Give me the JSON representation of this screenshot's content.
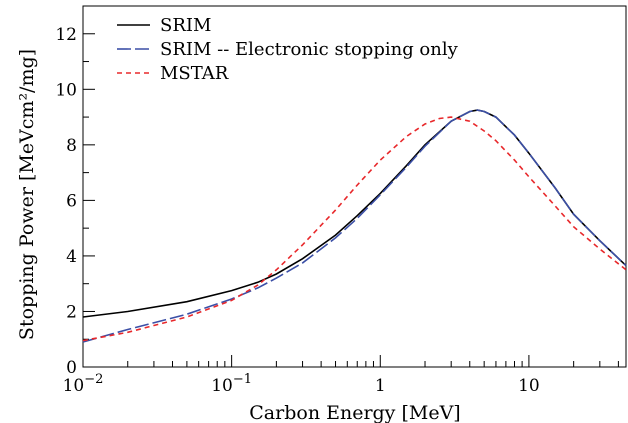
{
  "chart_data": {
    "type": "line",
    "xlabel": "Carbon Energy [MeV]",
    "ylabel": "Stopping Power [MeVcm²/mg]",
    "xscale": "log",
    "xlim": [
      0.01,
      45
    ],
    "ylim": [
      0,
      13
    ],
    "x_ticks": [
      {
        "value": 0.01,
        "base": "10",
        "exp": "−2"
      },
      {
        "value": 0.1,
        "base": "10",
        "exp": "−1"
      },
      {
        "value": 1,
        "base": "1",
        "exp": ""
      },
      {
        "value": 10,
        "base": "10",
        "exp": ""
      }
    ],
    "y_ticks": [
      0,
      2,
      4,
      6,
      8,
      10,
      12
    ],
    "y_tick_labels": [
      "0",
      "2",
      "4",
      "6",
      "8",
      "10",
      "12"
    ],
    "legend_position": "top-left",
    "grid": false,
    "series": [
      {
        "name": "SRIM",
        "color": "#000000",
        "dash": "solid",
        "x": [
          0.01,
          0.02,
          0.05,
          0.1,
          0.15,
          0.2,
          0.3,
          0.5,
          0.7,
          1.0,
          1.5,
          2.0,
          3.0,
          4.0,
          4.5,
          5.0,
          6.0,
          8.0,
          10,
          15,
          20,
          30,
          45
        ],
        "y": [
          1.8,
          2.0,
          2.35,
          2.75,
          3.05,
          3.35,
          3.9,
          4.75,
          5.45,
          6.25,
          7.25,
          8.0,
          8.85,
          9.2,
          9.25,
          9.2,
          9.0,
          8.35,
          7.7,
          6.45,
          5.5,
          4.55,
          3.65
        ]
      },
      {
        "name": "SRIM -- Electronic stopping only",
        "color": "#3b4fa6",
        "dash": "longdash",
        "x": [
          0.01,
          0.02,
          0.05,
          0.1,
          0.15,
          0.2,
          0.3,
          0.5,
          0.7,
          1.0,
          1.5,
          2.0,
          3.0,
          4.0,
          4.5,
          5.0,
          6.0,
          8.0,
          10,
          15,
          20,
          30,
          45
        ],
        "y": [
          0.9,
          1.35,
          1.9,
          2.45,
          2.85,
          3.2,
          3.75,
          4.65,
          5.35,
          6.2,
          7.2,
          7.95,
          8.85,
          9.2,
          9.25,
          9.2,
          9.0,
          8.35,
          7.7,
          6.45,
          5.5,
          4.55,
          3.65
        ]
      },
      {
        "name": "MSTAR",
        "color": "#e8282b",
        "dash": "dashed",
        "x": [
          0.01,
          0.02,
          0.05,
          0.1,
          0.15,
          0.2,
          0.3,
          0.5,
          0.7,
          1.0,
          1.5,
          2.0,
          2.5,
          3.0,
          4.0,
          5.0,
          6.0,
          8.0,
          10,
          15,
          20,
          30,
          45
        ],
        "y": [
          0.95,
          1.25,
          1.8,
          2.4,
          2.95,
          3.5,
          4.4,
          5.65,
          6.55,
          7.45,
          8.3,
          8.75,
          8.95,
          9.0,
          8.85,
          8.5,
          8.15,
          7.45,
          6.85,
          5.8,
          5.05,
          4.25,
          3.5
        ]
      }
    ]
  }
}
